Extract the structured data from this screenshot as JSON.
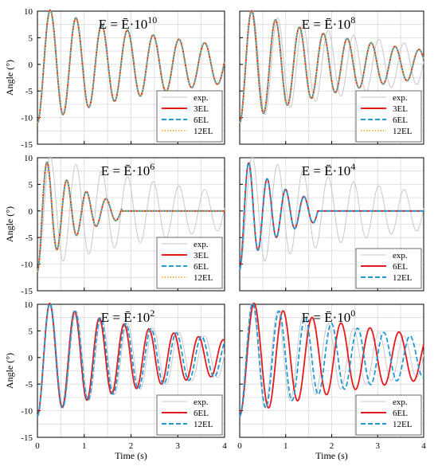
{
  "figure": {
    "xlabel": "Time (s)",
    "ylabel": "Angle (°)"
  },
  "colors": {
    "exp": "#c8c8c8",
    "3EL": "#e41a1c",
    "6EL": "#1f9bd8",
    "12EL": "#f0a01e",
    "grid": "#d9d9d9",
    "axis": "#000000"
  },
  "chart_data": [
    {
      "type": "line",
      "title": "E = Ē·10",
      "title_exponent": "10",
      "xlabel": "",
      "ylabel": "Angle (°)",
      "xlim": [
        0,
        4
      ],
      "ylim": [
        -15,
        10
      ],
      "xticks": [],
      "yticks": [
        "-15",
        "-10",
        "-5",
        "0",
        "5",
        "10"
      ],
      "grid": true,
      "legend": "lower-right",
      "series": [
        {
          "name": "exp.",
          "style": "thin",
          "color": "#c8c8c8",
          "amp": 11,
          "period": 0.55,
          "decay": 0.28,
          "phase": 3.14159,
          "cutoff": 4,
          "oscillate_sign": 1
        },
        {
          "name": "3EL",
          "style": "solid",
          "color": "#e41a1c",
          "amp": 11,
          "period": 0.55,
          "decay": 0.28,
          "phase": 3.14159,
          "cutoff": 4
        },
        {
          "name": "6EL",
          "style": "dashed",
          "color": "#1f9bd8",
          "amp": 11,
          "period": 0.55,
          "decay": 0.28,
          "phase": 3.14159,
          "cutoff": 4
        },
        {
          "name": "12EL",
          "style": "dotted",
          "color": "#f0a01e",
          "amp": 11,
          "period": 0.55,
          "decay": 0.28,
          "phase": 3.14159,
          "cutoff": 4
        }
      ]
    },
    {
      "type": "line",
      "title": "E = Ē·10",
      "title_exponent": "8",
      "xlabel": "",
      "ylabel": "",
      "xlim": [
        0,
        4
      ],
      "ylim": [
        -15,
        10
      ],
      "xticks": [],
      "yticks": [],
      "grid": true,
      "legend": "lower-right",
      "series": [
        {
          "name": "exp.",
          "style": "thin",
          "color": "#c8c8c8",
          "amp": 11,
          "period": 0.55,
          "decay": 0.28,
          "phase": 3.14159,
          "cutoff": 4
        },
        {
          "name": "3EL",
          "style": "solid",
          "color": "#e41a1c",
          "amp": 11,
          "period": 0.52,
          "decay": 0.35,
          "phase": 3.14159,
          "cutoff": 4
        },
        {
          "name": "6EL",
          "style": "dashed",
          "color": "#1f9bd8",
          "amp": 11,
          "period": 0.52,
          "decay": 0.35,
          "phase": 3.14159,
          "cutoff": 4
        },
        {
          "name": "12EL",
          "style": "dotted",
          "color": "#f0a01e",
          "amp": 11,
          "period": 0.52,
          "decay": 0.35,
          "phase": 3.14159,
          "cutoff": 4
        }
      ]
    },
    {
      "type": "line",
      "title": "E = Ē·10",
      "title_exponent": "6",
      "xlabel": "",
      "ylabel": "Angle (°)",
      "xlim": [
        0,
        4
      ],
      "ylim": [
        -15,
        10
      ],
      "xticks": [],
      "yticks": [
        "-15",
        "-10",
        "-5",
        "0",
        "5",
        "10"
      ],
      "grid": true,
      "legend": "lower-right",
      "series": [
        {
          "name": "exp.",
          "style": "thin",
          "color": "#c8c8c8",
          "amp": 11,
          "period": 0.55,
          "decay": 0.28,
          "phase": 3.14159,
          "cutoff": 4
        },
        {
          "name": "3EL",
          "style": "solid",
          "color": "#e41a1c",
          "amp": 11.5,
          "period": 0.42,
          "decay": 1.1,
          "phase": 3.14159,
          "cutoff": 1.8
        },
        {
          "name": "6EL",
          "style": "dashed",
          "color": "#1f9bd8",
          "amp": 11.5,
          "period": 0.42,
          "decay": 1.1,
          "phase": 3.14159,
          "cutoff": 1.8
        },
        {
          "name": "12EL",
          "style": "dotted",
          "color": "#f0a01e",
          "amp": 11.5,
          "period": 0.42,
          "decay": 1.1,
          "phase": 3.14159,
          "cutoff": 1.8
        }
      ]
    },
    {
      "type": "line",
      "title": "E = Ē·10",
      "title_exponent": "4",
      "xlabel": "",
      "ylabel": "",
      "xlim": [
        0,
        4
      ],
      "ylim": [
        -15,
        10
      ],
      "xticks": [],
      "yticks": [],
      "grid": true,
      "legend": "lower-right",
      "series": [
        {
          "name": "exp.",
          "style": "thin",
          "color": "#c8c8c8",
          "amp": 11,
          "period": 0.55,
          "decay": 0.28,
          "phase": 3.14159,
          "cutoff": 4
        },
        {
          "name": "6EL",
          "style": "solid",
          "color": "#e41a1c",
          "amp": 11,
          "period": 0.4,
          "decay": 1.0,
          "phase": 3.14159,
          "cutoff": 1.7
        },
        {
          "name": "12EL",
          "style": "dashed",
          "color": "#1f9bd8",
          "amp": 11,
          "period": 0.4,
          "decay": 1.0,
          "phase": 3.14159,
          "cutoff": 1.7
        }
      ]
    },
    {
      "type": "line",
      "title": "E = Ē·10",
      "title_exponent": "2",
      "xlabel": "Time (s)",
      "ylabel": "Angle (°)",
      "xlim": [
        0,
        4
      ],
      "ylim": [
        -15,
        10
      ],
      "xticks": [
        "0",
        "1",
        "2",
        "3",
        "4"
      ],
      "yticks": [
        "-15",
        "-10",
        "-5",
        "0",
        "5",
        "10"
      ],
      "grid": true,
      "legend": "lower-right",
      "series": [
        {
          "name": "exp.",
          "style": "thin",
          "color": "#c8c8c8",
          "amp": 11,
          "period": 0.55,
          "decay": 0.28,
          "phase": 3.14159,
          "cutoff": 4
        },
        {
          "name": "6EL",
          "style": "solid",
          "color": "#e41a1c",
          "amp": 11,
          "period": 0.53,
          "decay": 0.3,
          "phase": 3.14159,
          "cutoff": 4
        },
        {
          "name": "12EL",
          "style": "dashed",
          "color": "#1f9bd8",
          "amp": 11,
          "period": 0.54,
          "decay": 0.29,
          "phase": 3.14159,
          "cutoff": 4
        }
      ]
    },
    {
      "type": "line",
      "title": "E = Ē·10",
      "title_exponent": "0",
      "xlabel": "Time (s)",
      "ylabel": "",
      "xlim": [
        0,
        4
      ],
      "ylim": [
        -15,
        10
      ],
      "xticks": [
        "0",
        "1",
        "2",
        "3",
        "4"
      ],
      "yticks": [],
      "grid": true,
      "legend": "lower-right",
      "series": [
        {
          "name": "exp.",
          "style": "thin",
          "color": "#c8c8c8",
          "amp": 11,
          "period": 0.55,
          "decay": 0.28,
          "phase": 3.14159,
          "cutoff": 4
        },
        {
          "name": "6EL",
          "style": "solid",
          "color": "#e41a1c",
          "amp": 11,
          "period": 0.63,
          "decay": 0.24,
          "phase": 3.14159,
          "cutoff": 4
        },
        {
          "name": "12EL",
          "style": "dashed",
          "color": "#1f9bd8",
          "amp": 11,
          "period": 0.57,
          "decay": 0.27,
          "phase": 3.14159,
          "cutoff": 4
        }
      ]
    }
  ]
}
